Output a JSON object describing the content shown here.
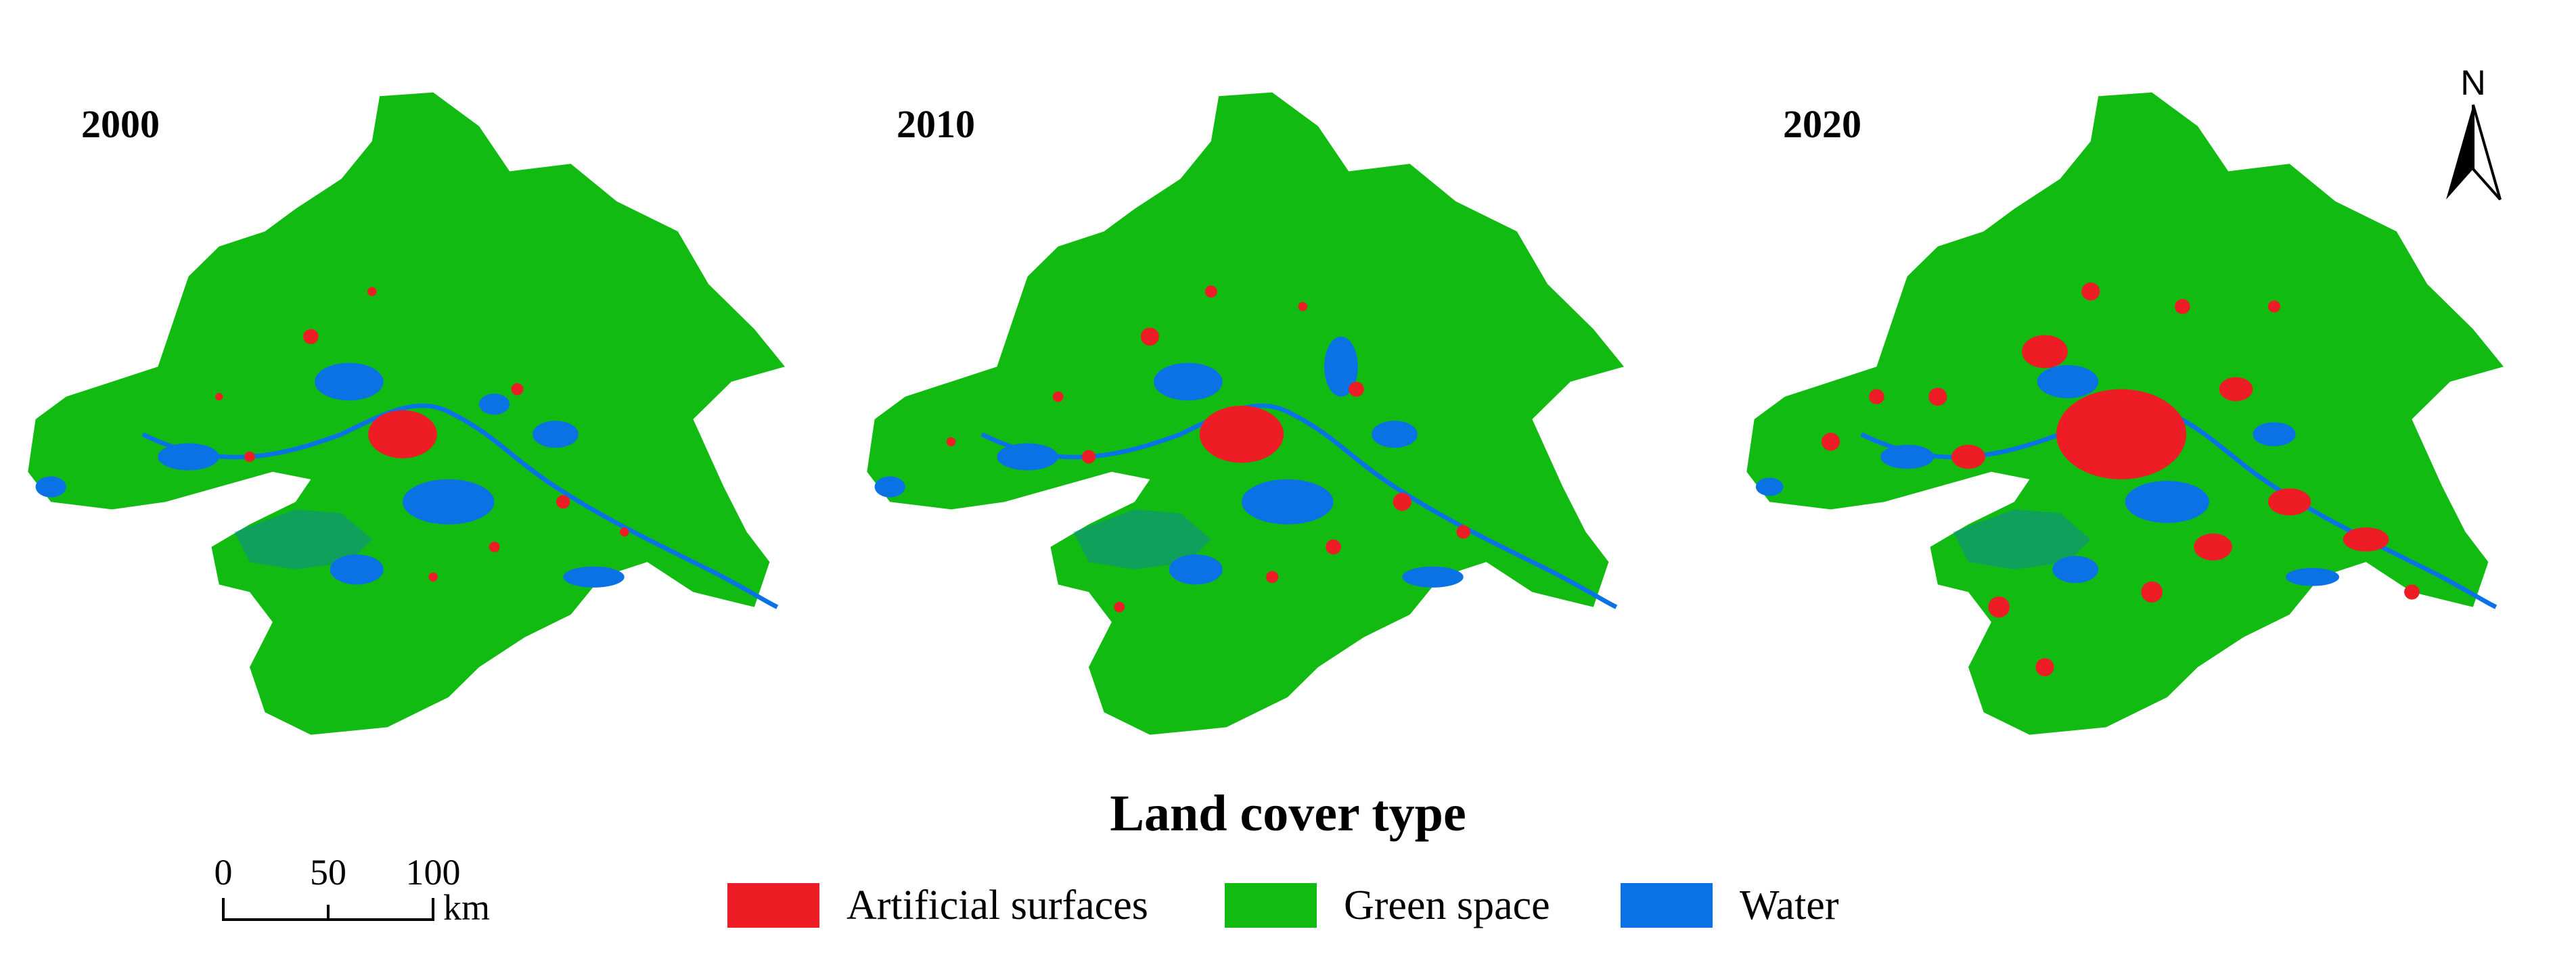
{
  "maps": [
    {
      "year": "2000",
      "artificial_intensity": "low"
    },
    {
      "year": "2010",
      "artificial_intensity": "medium"
    },
    {
      "year": "2020",
      "artificial_intensity": "high"
    }
  ],
  "legend": {
    "title": "Land cover type",
    "items": [
      {
        "label": "Artificial surfaces",
        "color": "#ee1c25"
      },
      {
        "label": "Green space",
        "color": "#11bb11"
      },
      {
        "label": "Water",
        "color": "#0b72e6"
      }
    ]
  },
  "scale_bar": {
    "ticks": [
      "0",
      "50",
      "100"
    ],
    "unit": "km"
  },
  "north_arrow": {
    "label": "N"
  }
}
